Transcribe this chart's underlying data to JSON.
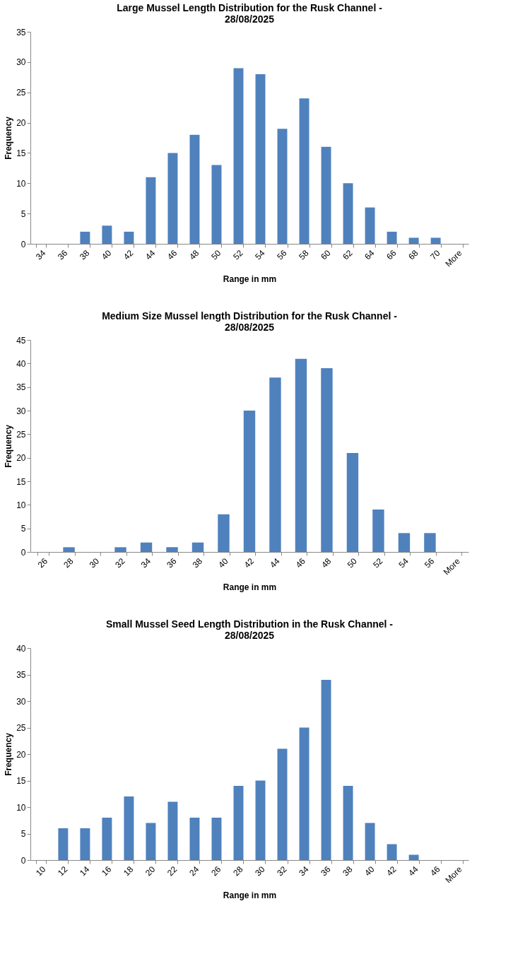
{
  "chart_data": [
    {
      "type": "bar",
      "title": "Large Mussel Length Distribution for the Rusk Channel -\n28/08/2025",
      "xlabel": "Range in mm",
      "ylabel": "Frequency",
      "categories": [
        "34",
        "36",
        "38",
        "40",
        "42",
        "44",
        "46",
        "48",
        "50",
        "52",
        "54",
        "56",
        "58",
        "60",
        "62",
        "64",
        "66",
        "68",
        "70",
        "More"
      ],
      "values": [
        0,
        0,
        2,
        3,
        2,
        11,
        15,
        18,
        13,
        29,
        28,
        19,
        24,
        16,
        10,
        6,
        2,
        1,
        1,
        0
      ],
      "color": "#4f81bd",
      "ylim": [
        0,
        35
      ],
      "yticks": [
        0,
        5,
        10,
        15,
        20,
        25,
        30,
        35
      ],
      "grid": false
    },
    {
      "type": "bar",
      "title": "Medium Size Mussel length Distribution for the Rusk Channel -\n28/08/2025",
      "xlabel": "Range in mm",
      "ylabel": "Frequency",
      "categories": [
        "26",
        "28",
        "30",
        "32",
        "34",
        "36",
        "38",
        "40",
        "42",
        "44",
        "46",
        "48",
        "50",
        "52",
        "54",
        "56",
        "More"
      ],
      "values": [
        0,
        1,
        0,
        1,
        2,
        1,
        2,
        8,
        30,
        37,
        41,
        39,
        21,
        9,
        4,
        4,
        0
      ],
      "color": "#4f81bd",
      "ylim": [
        0,
        45
      ],
      "yticks": [
        0,
        5,
        10,
        15,
        20,
        25,
        30,
        35,
        40,
        45
      ],
      "grid": false
    },
    {
      "type": "bar",
      "title": "Small Mussel Seed Length Distribution in the Rusk Channel -\n28/08/2025",
      "xlabel": "Range in mm",
      "ylabel": "Frequency",
      "categories": [
        "10",
        "12",
        "14",
        "16",
        "18",
        "20",
        "22",
        "24",
        "26",
        "28",
        "30",
        "32",
        "34",
        "36",
        "38",
        "40",
        "42",
        "44",
        "46",
        "More"
      ],
      "values": [
        0,
        6,
        6,
        8,
        12,
        7,
        11,
        8,
        8,
        14,
        15,
        21,
        25,
        34,
        14,
        7,
        3,
        1,
        0,
        0
      ],
      "color": "#4f81bd",
      "ylim": [
        0,
        40
      ],
      "yticks": [
        0,
        5,
        10,
        15,
        20,
        25,
        30,
        35,
        40
      ],
      "grid": false
    }
  ]
}
